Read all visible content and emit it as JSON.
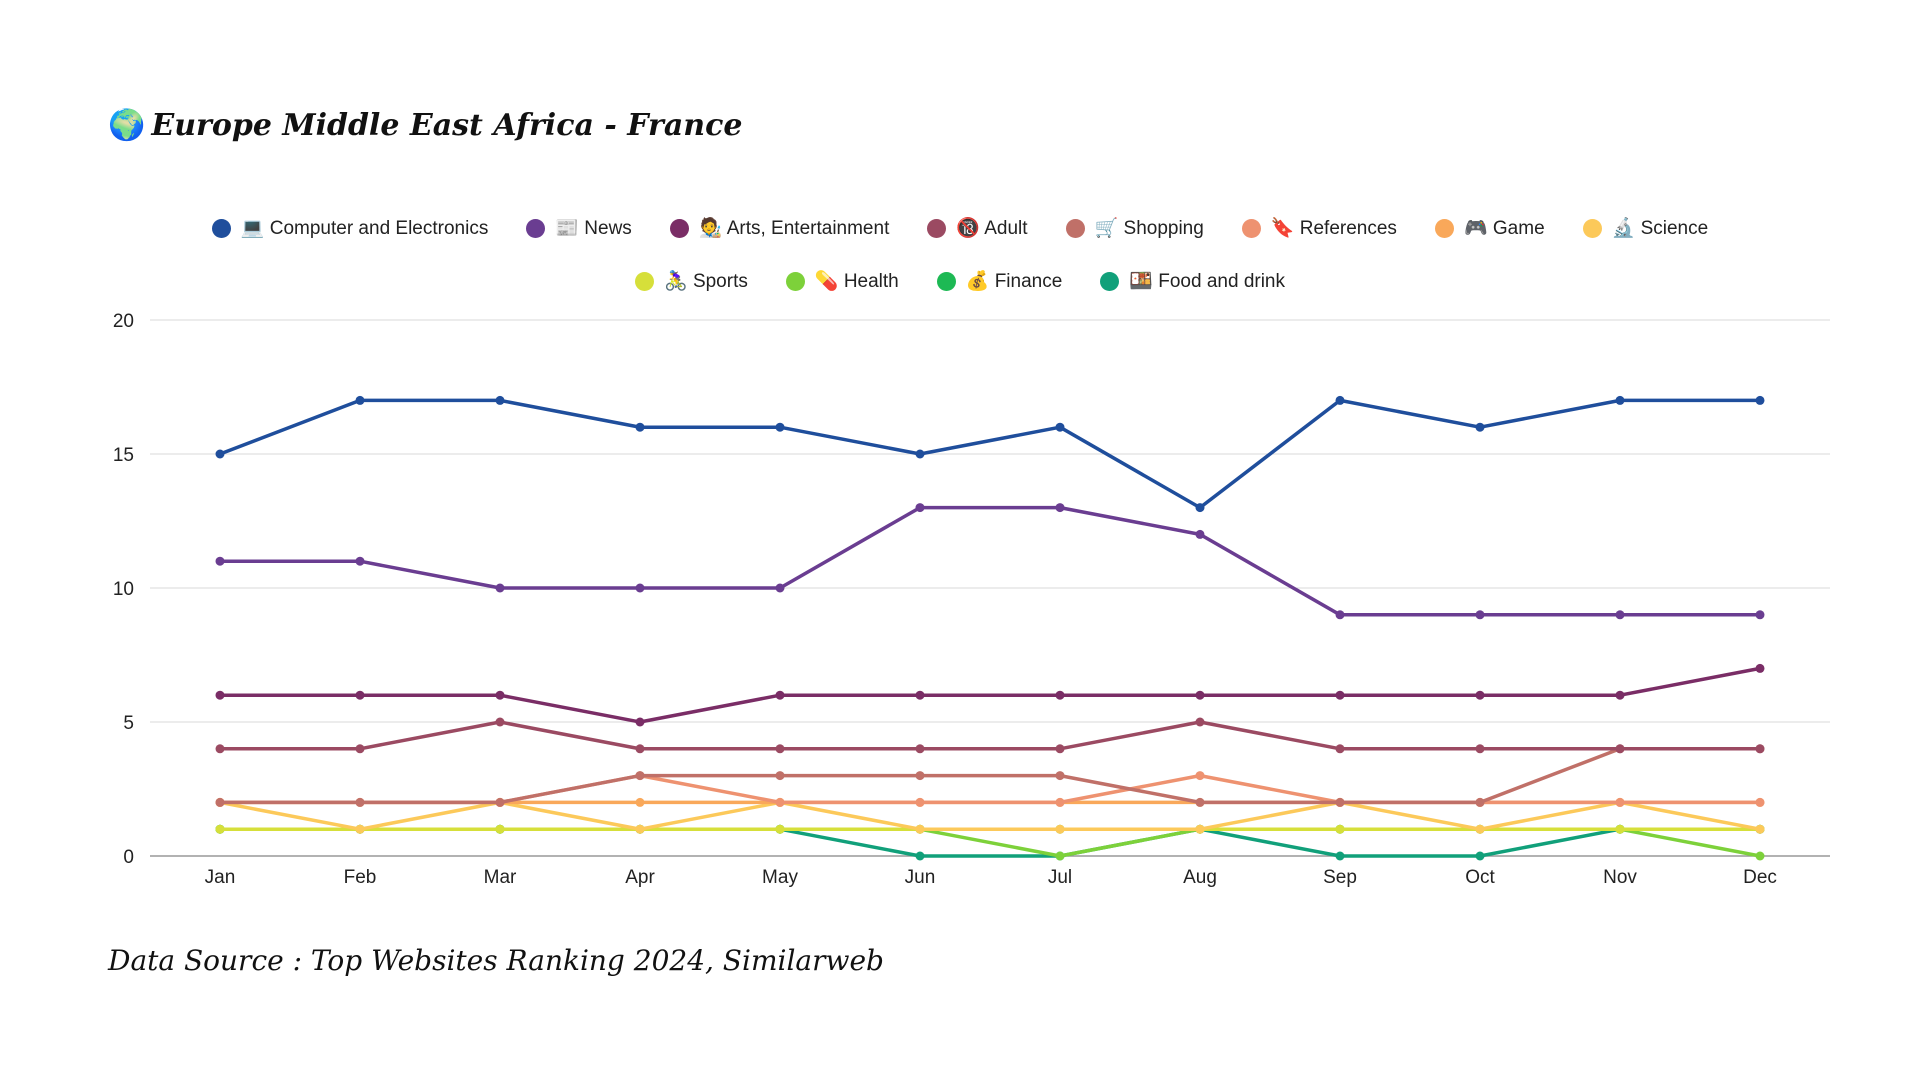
{
  "title_icon": "🌍",
  "title_text": "Europe Middle East Africa - France",
  "source_text": "Data Source : Top Websites Ranking 2024, Similarweb",
  "chart_data": {
    "type": "line",
    "title": "Europe Middle East Africa - France",
    "xlabel": "",
    "ylabel": "",
    "ylim": [
      0,
      20
    ],
    "yticks": [
      0,
      5,
      10,
      15,
      20
    ],
    "grid": true,
    "legend_position": "top-center",
    "categories": [
      "Jan",
      "Feb",
      "Mar",
      "Apr",
      "May",
      "Jun",
      "Jul",
      "Aug",
      "Sep",
      "Oct",
      "Nov",
      "Dec"
    ],
    "series": [
      {
        "name": "Computer and Electronics",
        "icon": "💻",
        "color": "#1f4e9c",
        "values": [
          15,
          17,
          17,
          16,
          16,
          15,
          16,
          13,
          17,
          16,
          17,
          17
        ]
      },
      {
        "name": "News",
        "icon": "📰",
        "color": "#6a3d91",
        "values": [
          11,
          11,
          10,
          10,
          10,
          13,
          13,
          12,
          9,
          9,
          9,
          9
        ]
      },
      {
        "name": "Arts, Entertainment",
        "icon": "🧑‍🎨",
        "color": "#7a2d66",
        "values": [
          6,
          6,
          6,
          5,
          6,
          6,
          6,
          6,
          6,
          6,
          6,
          7
        ]
      },
      {
        "name": "Adult",
        "icon": "🔞",
        "color": "#9b4a62",
        "values": [
          4,
          4,
          5,
          4,
          4,
          4,
          4,
          5,
          4,
          4,
          4,
          4
        ]
      },
      {
        "name": "Shopping",
        "icon": "🛒",
        "color": "#c07068",
        "values": [
          2,
          2,
          2,
          3,
          3,
          3,
          3,
          2,
          2,
          2,
          4,
          4
        ]
      },
      {
        "name": "References",
        "icon": "🔖",
        "color": "#ee9270",
        "values": [
          2,
          2,
          2,
          3,
          2,
          2,
          2,
          3,
          2,
          2,
          2,
          2
        ]
      },
      {
        "name": "Game",
        "icon": "🎮",
        "color": "#f9a85a",
        "values": [
          2,
          2,
          2,
          2,
          2,
          2,
          2,
          2,
          2,
          2,
          2,
          2
        ]
      },
      {
        "name": "Science",
        "icon": "🔬",
        "color": "#fcc95a",
        "values": [
          2,
          1,
          2,
          1,
          2,
          1,
          1,
          1,
          2,
          1,
          2,
          1
        ]
      },
      {
        "name": "Sports",
        "icon": "🚴‍♀️",
        "color": "#d6df3a",
        "values": [
          1,
          1,
          1,
          1,
          1,
          1,
          1,
          1,
          1,
          1,
          1,
          1
        ]
      },
      {
        "name": "Health",
        "icon": "💊",
        "color": "#7dd13a",
        "values": [
          1,
          1,
          1,
          1,
          1,
          1,
          0,
          1,
          1,
          1,
          1,
          0
        ]
      },
      {
        "name": "Finance",
        "icon": "💰",
        "color": "#1db954",
        "values": [
          1,
          1,
          1,
          1,
          1,
          1,
          1,
          1,
          1,
          1,
          1,
          1
        ]
      },
      {
        "name": "Food and drink",
        "icon": "🍱",
        "color": "#11a07a",
        "values": [
          1,
          1,
          1,
          1,
          1,
          0,
          0,
          1,
          0,
          0,
          1,
          1
        ]
      }
    ]
  }
}
